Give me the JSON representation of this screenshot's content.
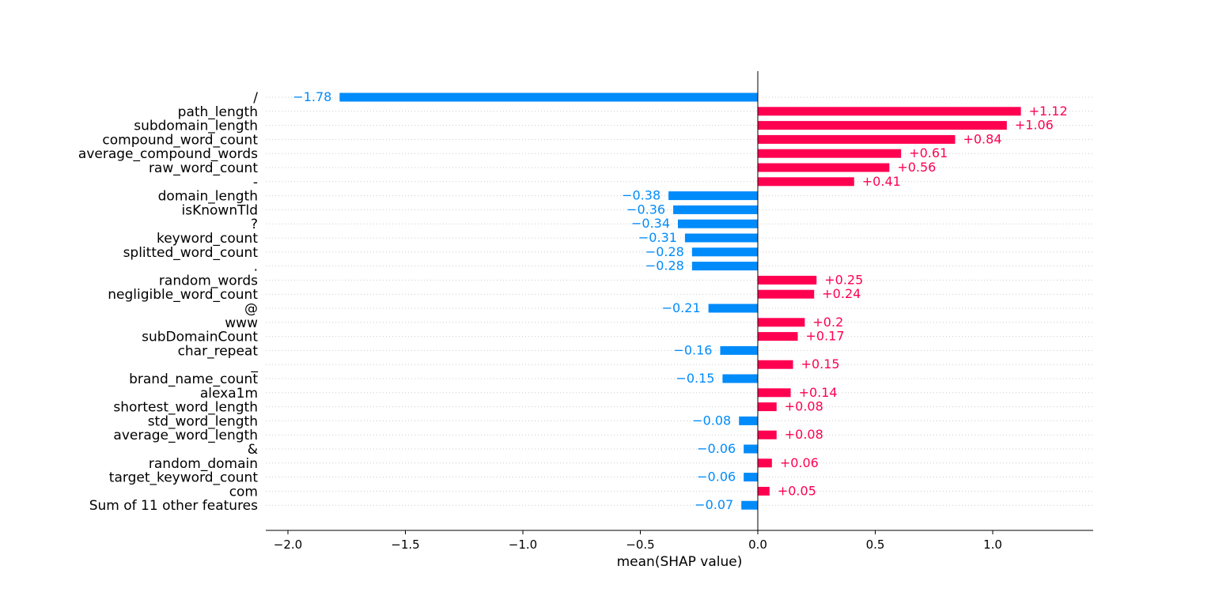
{
  "chart_data": {
    "type": "bar",
    "orientation": "horizontal",
    "xlabel": "mean(SHAP value)",
    "xlim": [
      -2.1,
      1.4
    ],
    "xticks": [
      -2.0,
      -1.5,
      -1.0,
      -0.5,
      0.0,
      0.5,
      1.0
    ],
    "xtick_labels": [
      "−2.0",
      "−1.5",
      "−1.0",
      "−0.5",
      "0.0",
      "0.5",
      "1.0"
    ],
    "grid": "dotted horizontal row lines",
    "colors": {
      "positive": "#ff0051",
      "negative": "#008bfb",
      "axis": "#000000",
      "grid": "#cccccc"
    },
    "categories": [
      "/",
      "path_length",
      "subdomain_length",
      "compound_word_count",
      "average_compound_words",
      "raw_word_count",
      "-",
      "domain_length",
      "isKnownTld",
      "?",
      "keyword_count",
      "splitted_word_count",
      ".",
      "random_words",
      "negligible_word_count",
      "@",
      "www",
      "subDomainCount",
      "char_repeat",
      "_",
      "brand_name_count",
      "alexa1m",
      "shortest_word_length",
      "std_word_length",
      "average_word_length",
      "&",
      "random_domain",
      "target_keyword_count",
      "com",
      "Sum of 11 other features"
    ],
    "values": [
      -1.78,
      1.12,
      1.06,
      0.84,
      0.61,
      0.56,
      0.41,
      -0.38,
      -0.36,
      -0.34,
      -0.31,
      -0.28,
      -0.28,
      0.25,
      0.24,
      -0.21,
      0.2,
      0.17,
      -0.16,
      0.15,
      -0.15,
      0.14,
      0.08,
      -0.08,
      0.08,
      -0.06,
      0.06,
      -0.06,
      0.05,
      -0.07
    ],
    "labels": [
      "−1.78",
      "+1.12",
      "+1.06",
      "+0.84",
      "+0.61",
      "+0.56",
      "+0.41",
      "−0.38",
      "−0.36",
      "−0.34",
      "−0.31",
      "−0.28",
      "−0.28",
      "+0.25",
      "+0.24",
      "−0.21",
      "+0.2",
      "+0.17",
      "−0.16",
      "+0.15",
      "−0.15",
      "+0.14",
      "+0.08",
      "−0.08",
      "+0.08",
      "−0.06",
      "+0.06",
      "−0.06",
      "+0.05",
      "−0.07"
    ]
  }
}
